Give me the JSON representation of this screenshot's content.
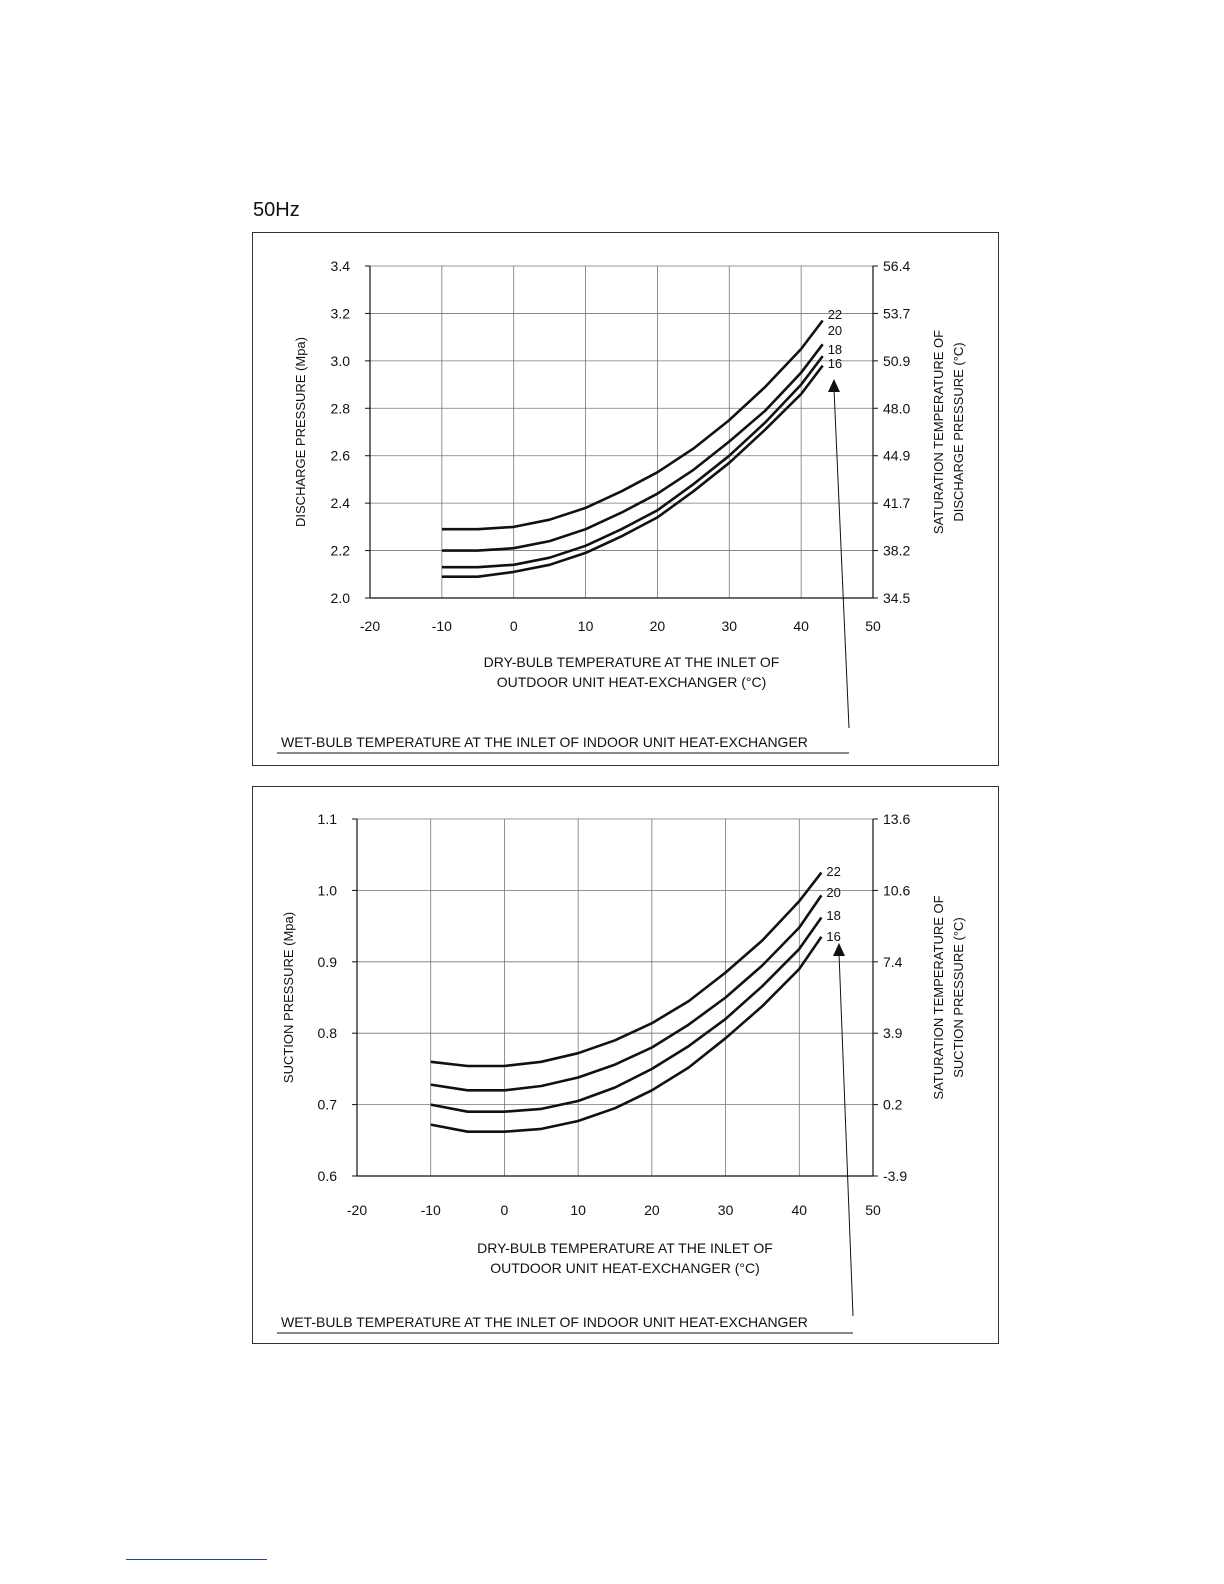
{
  "page": {
    "frequency_label": "50Hz"
  },
  "chart_data": [
    {
      "type": "line",
      "xlabel": [
        "DRY-BULB TEMPERATURE AT THE INLET OF",
        "OUTDOOR UNIT HEAT-EXCHANGER (°C)"
      ],
      "ylabel": "DISCHARGE PRESSURE (Mpa)",
      "y2label": [
        "SATURATION TEMPERATURE OF",
        "DISCHARGE PRESSURE (°C)"
      ],
      "xlim": [
        -20,
        50
      ],
      "ylim": [
        2.0,
        3.4
      ],
      "grid": true,
      "x_ticks": [
        -20,
        -10,
        0,
        10,
        20,
        30,
        40,
        50
      ],
      "y_ticks": [
        "2.0",
        "2.2",
        "2.4",
        "2.6",
        "2.8",
        "3.0",
        "3.2",
        "3.4"
      ],
      "y2_ticks": [
        "34.5",
        "38.2",
        "41.7",
        "44.9",
        "48.0",
        "50.9",
        "53.7",
        "56.4"
      ],
      "legend_title": "WET-BULB TEMPERATURE AT THE INLET OF INDOOR UNIT HEAT-EXCHANGER",
      "series": [
        {
          "name": "22",
          "x": [
            -10,
            -5,
            0,
            5,
            10,
            15,
            20,
            25,
            30,
            35,
            40,
            43
          ],
          "y": [
            2.29,
            2.29,
            2.3,
            2.33,
            2.38,
            2.45,
            2.53,
            2.63,
            2.75,
            2.89,
            3.05,
            3.17
          ]
        },
        {
          "name": "20",
          "x": [
            -10,
            -5,
            0,
            5,
            10,
            15,
            20,
            25,
            30,
            35,
            40,
            43
          ],
          "y": [
            2.2,
            2.2,
            2.21,
            2.24,
            2.29,
            2.36,
            2.44,
            2.54,
            2.66,
            2.79,
            2.95,
            3.07
          ]
        },
        {
          "name": "18",
          "x": [
            -10,
            -5,
            0,
            5,
            10,
            15,
            20,
            25,
            30,
            35,
            40,
            43
          ],
          "y": [
            2.13,
            2.13,
            2.14,
            2.17,
            2.22,
            2.29,
            2.37,
            2.48,
            2.6,
            2.74,
            2.9,
            3.02
          ]
        },
        {
          "name": "16",
          "x": [
            -10,
            -5,
            0,
            5,
            10,
            15,
            20,
            25,
            30,
            35,
            40,
            43
          ],
          "y": [
            2.09,
            2.09,
            2.11,
            2.14,
            2.19,
            2.26,
            2.34,
            2.45,
            2.57,
            2.71,
            2.86,
            2.98
          ]
        }
      ]
    },
    {
      "type": "line",
      "xlabel": [
        "DRY-BULB TEMPERATURE AT THE INLET OF",
        "OUTDOOR UNIT HEAT-EXCHANGER (°C)"
      ],
      "ylabel": "SUCTION PRESSURE (Mpa)",
      "y2label": [
        "SATURATION TEMPERATURE OF",
        "SUCTION PRESSURE (°C)"
      ],
      "xlim": [
        -20,
        50
      ],
      "ylim": [
        0.6,
        1.1
      ],
      "grid": true,
      "x_ticks": [
        -20,
        -10,
        0,
        10,
        20,
        30,
        40,
        50
      ],
      "y_ticks": [
        "0.6",
        "0.7",
        "0.8",
        "0.9",
        "1.0",
        "1.1"
      ],
      "y2_ticks": [
        "-3.9",
        "0.2",
        "3.9",
        "7.4",
        "10.6",
        "13.6"
      ],
      "legend_title": "WET-BULB TEMPERATURE AT THE INLET OF INDOOR UNIT HEAT-EXCHANGER",
      "series": [
        {
          "name": "22",
          "x": [
            -10,
            -5,
            0,
            5,
            10,
            15,
            20,
            25,
            30,
            35,
            40,
            43
          ],
          "y": [
            0.76,
            0.754,
            0.754,
            0.76,
            0.772,
            0.79,
            0.814,
            0.845,
            0.885,
            0.93,
            0.985,
            1.025
          ]
        },
        {
          "name": "20",
          "x": [
            -10,
            -5,
            0,
            5,
            10,
            15,
            20,
            25,
            30,
            35,
            40,
            43
          ],
          "y": [
            0.728,
            0.72,
            0.72,
            0.726,
            0.738,
            0.756,
            0.78,
            0.812,
            0.85,
            0.895,
            0.948,
            0.993
          ]
        },
        {
          "name": "18",
          "x": [
            -10,
            -5,
            0,
            5,
            10,
            15,
            20,
            25,
            30,
            35,
            40,
            43
          ],
          "y": [
            0.7,
            0.69,
            0.69,
            0.694,
            0.705,
            0.724,
            0.75,
            0.782,
            0.82,
            0.866,
            0.918,
            0.962
          ]
        },
        {
          "name": "16",
          "x": [
            -10,
            -5,
            0,
            5,
            10,
            15,
            20,
            25,
            30,
            35,
            40,
            43
          ],
          "y": [
            0.672,
            0.662,
            0.662,
            0.666,
            0.677,
            0.695,
            0.72,
            0.752,
            0.793,
            0.838,
            0.89,
            0.935
          ]
        }
      ]
    }
  ]
}
